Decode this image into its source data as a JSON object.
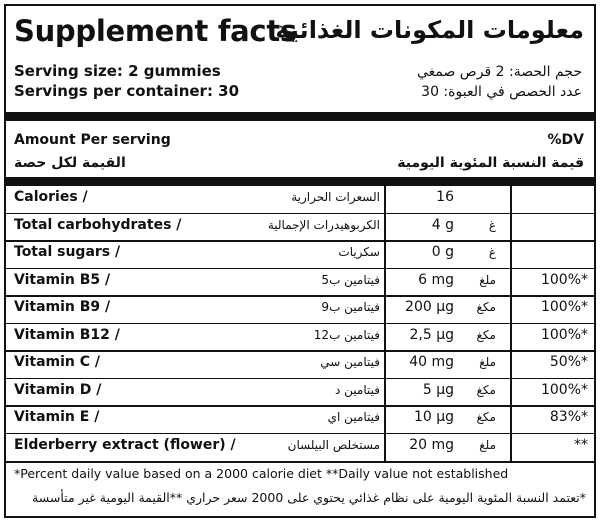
{
  "header": {
    "title_en": "Supplement facts",
    "title_ar": "معلومات المكونات الغذائية"
  },
  "serving": {
    "size_en": "Serving size: 2  gummies",
    "size_ar": "حجم الحصة: 2 قرص صمغي",
    "per_container_en": "Servings per container: 30",
    "per_container_ar": "عدد الحصص في العبوة: 30"
  },
  "table_header": {
    "amount_en": "Amount Per serving",
    "amount_ar": "القيمة لكل حصة",
    "dv_en": "%DV",
    "dv_ar": "قيمة النسبة المئوية اليومية"
  },
  "nutrients": [
    {
      "name_en": "Calories /",
      "name_ar": "السعرات الحرارية",
      "amount": "16",
      "unit_ar": "",
      "dv": ""
    },
    {
      "name_en": "Total carbohydrates /",
      "name_ar": "الكربوهيدرات الإجمالية",
      "amount": "4 g",
      "unit_ar": "غ",
      "dv": ""
    },
    {
      "name_en": "Total sugars /",
      "name_ar": "سكريات",
      "amount": "0 g",
      "unit_ar": "غ",
      "dv": ""
    },
    {
      "name_en": "Vitamin B5 /",
      "name_ar": "فيتامين ب5",
      "amount": "6 mg",
      "unit_ar": "ملغ",
      "dv": "100%*"
    },
    {
      "name_en": "Vitamin B9 /",
      "name_ar": "فيتامين ب9",
      "amount": "200 µg",
      "unit_ar": "مكغ",
      "dv": "100%*"
    },
    {
      "name_en": "Vitamin B12 /",
      "name_ar": "فيتامين ب12",
      "amount": "2,5 µg",
      "unit_ar": "مكغ",
      "dv": "100%*"
    },
    {
      "name_en": "Vitamin C  /",
      "name_ar": "فيتامين سي",
      "amount": "40 mg",
      "unit_ar": "ملغ",
      "dv": "50%*"
    },
    {
      "name_en": "Vitamin D  /",
      "name_ar": "فيتامين د",
      "amount": "5 µg",
      "unit_ar": "مكغ",
      "dv": "100%*"
    },
    {
      "name_en": "Vitamin E  /",
      "name_ar": "فيتامين اي",
      "amount": "10 µg",
      "unit_ar": "مكغ",
      "dv": "83%*"
    },
    {
      "name_en": "Elderberry extract (flower) /",
      "name_ar": "مستخلص البيلسان",
      "amount": "20 mg",
      "unit_ar": "ملغ",
      "dv": "**"
    }
  ],
  "footnotes": {
    "en": "*Percent daily value based on a 2000 calorie diet  **Daily value not established",
    "ar": "*تعتمد النسبة المئوية اليومية على نظام غذائي يحتوي على 2000 سعر حراري **القيمة اليومية غير متأسسة"
  }
}
